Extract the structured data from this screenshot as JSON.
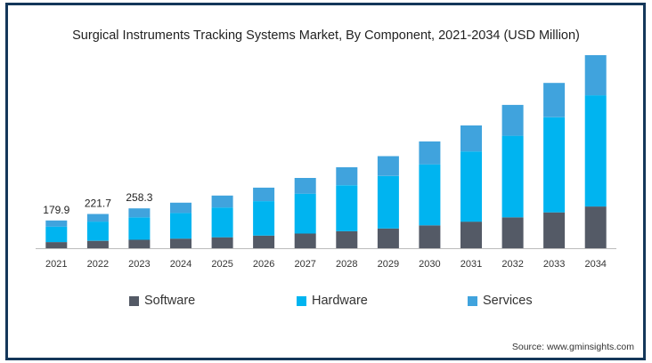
{
  "chart_data": {
    "type": "bar",
    "stacked": true,
    "title": "Surgical Instruments Tracking Systems Market, By Component, 2021-2034 (USD Million)",
    "categories": [
      "2021",
      "2022",
      "2023",
      "2024",
      "2025",
      "2026",
      "2027",
      "2028",
      "2029",
      "2030",
      "2031",
      "2032",
      "2033",
      "2034"
    ],
    "series": [
      {
        "name": "Software",
        "color": "#545a66",
        "values": [
          40,
          48,
          55,
          62,
          71,
          82,
          95,
          110,
          128,
          148,
          172,
          200,
          232,
          270
        ]
      },
      {
        "name": "Hardware",
        "color": "#00b4f0",
        "values": [
          100,
          124,
          145,
          166,
          193,
          223,
          258,
          298,
          340,
          395,
          455,
          528,
          616,
          720
        ]
      },
      {
        "name": "Services",
        "color": "#40a3dd",
        "values": [
          39.9,
          49.7,
          58.3,
          67,
          77,
          87,
          102,
          116,
          128,
          148,
          168,
          200,
          222,
          260
        ]
      }
    ],
    "data_labels": [
      {
        "category": "2021",
        "text": "179.9"
      },
      {
        "category": "2022",
        "text": "221.7"
      },
      {
        "category": "2023",
        "text": "258.3"
      }
    ],
    "ylim": [
      0,
      1250
    ],
    "grid": false,
    "legend_position": "bottom"
  },
  "source": "Source: www.gminsights.com"
}
